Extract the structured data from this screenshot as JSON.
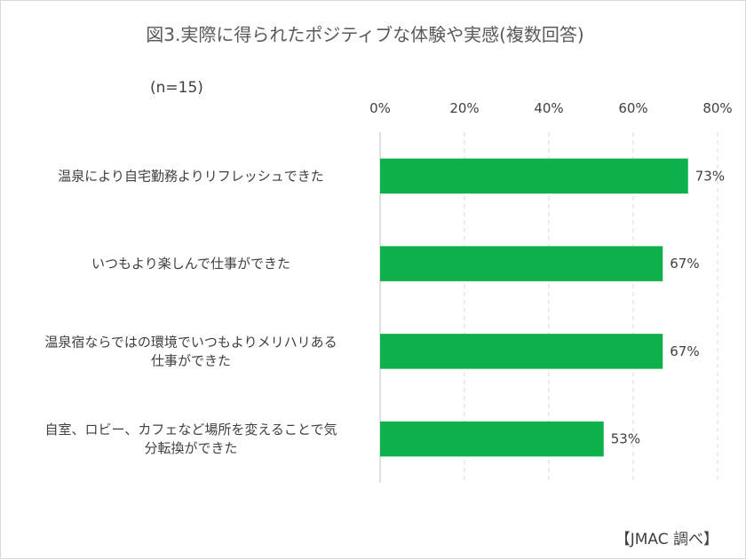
{
  "chart_data": {
    "type": "bar",
    "orientation": "horizontal",
    "title": "図3.実際に得られたポジティブな体験や実感(複数回答)",
    "sample_note": "(n=15)",
    "source": "【JMAC 調べ】",
    "categories": [
      [
        "温泉により自宅勤務よりリフレッシュできた"
      ],
      [
        "いつもより楽しんで仕事ができた"
      ],
      [
        "温泉宿ならではの環境でいつもよりメリハリある",
        "仕事ができた"
      ],
      [
        "自室、ロビー、カフェなど場所を変えることで気",
        "分転換ができた"
      ]
    ],
    "values": [
      73,
      67,
      67,
      53
    ],
    "value_labels": [
      "73%",
      "67%",
      "67%",
      "53%"
    ],
    "xlim": [
      0,
      80
    ],
    "ticks": [
      0,
      20,
      40,
      60,
      80
    ],
    "tick_labels": [
      "0%",
      "20%",
      "40%",
      "60%",
      "80%"
    ],
    "bar_color": "#0db04b",
    "grid": true,
    "axis_position": "top"
  }
}
